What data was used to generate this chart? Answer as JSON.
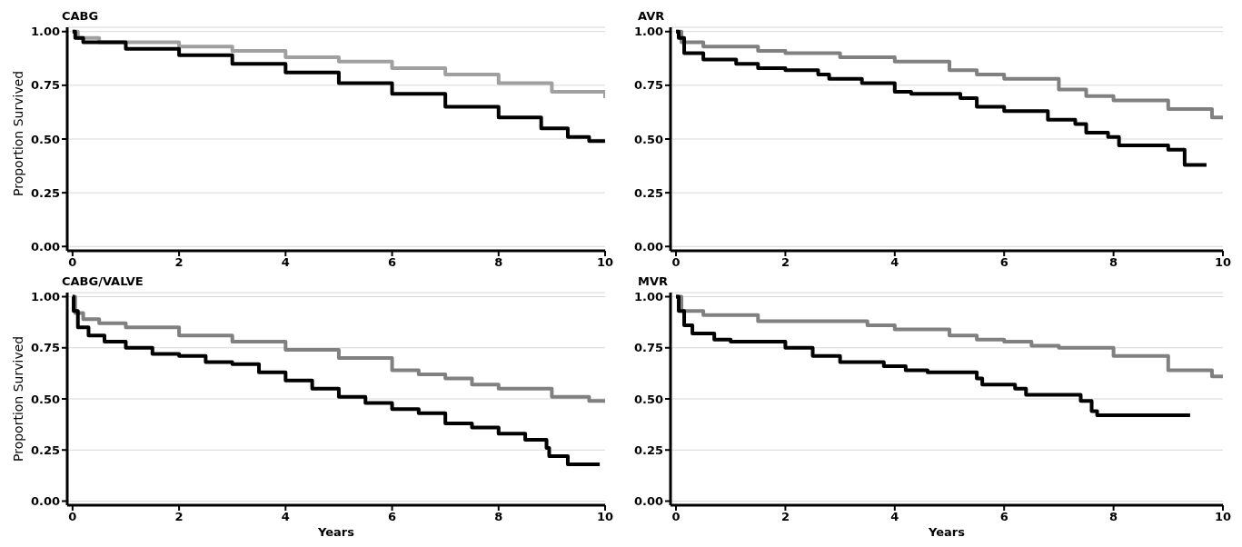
{
  "chart_data": [
    {
      "type": "step",
      "title": "CABG",
      "ylabel": "Proportion Survived",
      "xlim": [
        -0.1,
        10
      ],
      "xticks": [
        0,
        2,
        4,
        6,
        8,
        10
      ],
      "ylim": [
        -0.02,
        1.02
      ],
      "yticks": [
        {
          "value": 0,
          "label": "0.00"
        },
        {
          "value": 0.25,
          "label": "0.25"
        },
        {
          "value": 0.5,
          "label": "0.50"
        },
        {
          "value": 0.75,
          "label": "0.75"
        },
        {
          "value": 1,
          "label": "1.00"
        }
      ],
      "grid": "y",
      "legend": false,
      "marker": "none",
      "line_style": "solid",
      "series": [
        {
          "color": "#a0a0a0",
          "x": [
            0,
            0.1,
            0.5,
            2,
            3,
            4,
            5,
            6,
            7,
            8,
            9,
            10
          ],
          "values": [
            1,
            0.97,
            0.95,
            0.93,
            0.91,
            0.88,
            0.86,
            0.83,
            0.8,
            0.76,
            0.72,
            0.69
          ]
        },
        {
          "color": "#000000",
          "x": [
            0,
            0.05,
            0.2,
            1,
            2,
            3,
            4,
            5,
            6,
            7,
            8,
            8.8,
            9.3,
            9.7,
            10
          ],
          "values": [
            1,
            0.97,
            0.95,
            0.92,
            0.89,
            0.85,
            0.81,
            0.76,
            0.71,
            0.65,
            0.6,
            0.55,
            0.51,
            0.49,
            0.49
          ]
        }
      ]
    },
    {
      "type": "step",
      "title": "AVR",
      "xlim": [
        -0.1,
        10
      ],
      "xticks": [
        0,
        2,
        4,
        6,
        8,
        10
      ],
      "ylim": [
        -0.02,
        1.02
      ],
      "yticks": [
        {
          "value": 0,
          "label": "0.00"
        },
        {
          "value": 0.25,
          "label": "0.25"
        },
        {
          "value": 0.5,
          "label": "0.50"
        },
        {
          "value": 0.75,
          "label": "0.75"
        },
        {
          "value": 1,
          "label": "1.00"
        }
      ],
      "grid": "y",
      "legend": false,
      "marker": "none",
      "line_style": "solid",
      "series": [
        {
          "color": "#808080",
          "x": [
            0,
            0.1,
            0.5,
            1.5,
            2,
            3,
            4,
            5,
            5.5,
            6,
            7,
            7.5,
            8,
            9,
            9.8,
            10
          ],
          "values": [
            1,
            0.95,
            0.93,
            0.91,
            0.9,
            0.88,
            0.86,
            0.82,
            0.8,
            0.78,
            0.73,
            0.7,
            0.68,
            0.64,
            0.6,
            0.6
          ]
        },
        {
          "color": "#000000",
          "x": [
            0,
            0.05,
            0.15,
            0.5,
            1.1,
            1.5,
            2,
            2.6,
            2.8,
            3.4,
            4,
            4.3,
            5.2,
            5.5,
            6,
            6.8,
            7.3,
            7.5,
            7.9,
            8.1,
            9,
            9.3,
            9.7
          ],
          "values": [
            1,
            0.97,
            0.9,
            0.87,
            0.85,
            0.83,
            0.82,
            0.8,
            0.78,
            0.76,
            0.72,
            0.71,
            0.69,
            0.65,
            0.63,
            0.59,
            0.57,
            0.53,
            0.51,
            0.47,
            0.45,
            0.38,
            0.38
          ]
        }
      ]
    },
    {
      "type": "step",
      "title": "CABG/VALVE",
      "xlabel": "Years",
      "ylabel": "Proportion Survived",
      "xlim": [
        -0.1,
        10
      ],
      "xticks": [
        0,
        2,
        4,
        6,
        8,
        10
      ],
      "ylim": [
        -0.02,
        1.02
      ],
      "yticks": [
        {
          "value": 0,
          "label": "0.00"
        },
        {
          "value": 0.25,
          "label": "0.25"
        },
        {
          "value": 0.5,
          "label": "0.50"
        },
        {
          "value": 0.75,
          "label": "0.75"
        },
        {
          "value": 1,
          "label": "1.00"
        }
      ],
      "grid": "y",
      "legend": false,
      "marker": "none",
      "line_style": "solid",
      "series": [
        {
          "color": "#808080",
          "x": [
            0,
            0.05,
            0.2,
            0.5,
            1,
            2,
            3,
            4,
            5,
            6,
            6.5,
            7,
            7.5,
            8,
            9,
            9.7,
            10
          ],
          "values": [
            1,
            0.92,
            0.89,
            0.87,
            0.85,
            0.81,
            0.78,
            0.74,
            0.7,
            0.64,
            0.62,
            0.6,
            0.57,
            0.55,
            0.51,
            0.49,
            0.49
          ]
        },
        {
          "color": "#000000",
          "x": [
            0,
            0.02,
            0.1,
            0.3,
            0.6,
            1,
            1.5,
            2,
            2.5,
            3,
            3.5,
            4,
            4.5,
            5,
            5.5,
            6,
            6.5,
            7,
            7.5,
            8,
            8.5,
            8.9,
            8.95,
            9.3,
            9.9
          ],
          "values": [
            1,
            0.93,
            0.85,
            0.81,
            0.78,
            0.75,
            0.72,
            0.71,
            0.68,
            0.67,
            0.63,
            0.59,
            0.55,
            0.51,
            0.48,
            0.45,
            0.43,
            0.38,
            0.36,
            0.33,
            0.3,
            0.26,
            0.22,
            0.18,
            0.18
          ]
        }
      ]
    },
    {
      "type": "step",
      "title": "MVR",
      "xlabel": "Years",
      "xlim": [
        -0.1,
        10
      ],
      "xticks": [
        0,
        2,
        4,
        6,
        8,
        10
      ],
      "ylim": [
        -0.02,
        1.02
      ],
      "yticks": [
        {
          "value": 0,
          "label": "0.00"
        },
        {
          "value": 0.25,
          "label": "0.25"
        },
        {
          "value": 0.5,
          "label": "0.50"
        },
        {
          "value": 0.75,
          "label": "0.75"
        },
        {
          "value": 1,
          "label": "1.00"
        }
      ],
      "grid": "y",
      "legend": false,
      "marker": "none",
      "line_style": "solid",
      "series": [
        {
          "color": "#808080",
          "x": [
            0,
            0.1,
            0.5,
            1.5,
            2,
            3.5,
            4,
            5,
            5.5,
            6,
            6.5,
            7,
            8,
            9,
            9.8,
            10
          ],
          "values": [
            1,
            0.93,
            0.91,
            0.88,
            0.88,
            0.86,
            0.84,
            0.81,
            0.79,
            0.78,
            0.76,
            0.75,
            0.71,
            0.64,
            0.61,
            0.61
          ]
        },
        {
          "color": "#000000",
          "x": [
            0,
            0.05,
            0.15,
            0.3,
            0.7,
            1,
            2,
            2.5,
            3,
            3.8,
            4.2,
            4.6,
            5.5,
            5.6,
            6.2,
            6.4,
            7.4,
            7.6,
            7.7,
            9.4
          ],
          "values": [
            1,
            0.93,
            0.86,
            0.82,
            0.79,
            0.78,
            0.75,
            0.71,
            0.68,
            0.66,
            0.64,
            0.63,
            0.6,
            0.57,
            0.55,
            0.52,
            0.49,
            0.44,
            0.42,
            0.42
          ]
        }
      ]
    }
  ]
}
